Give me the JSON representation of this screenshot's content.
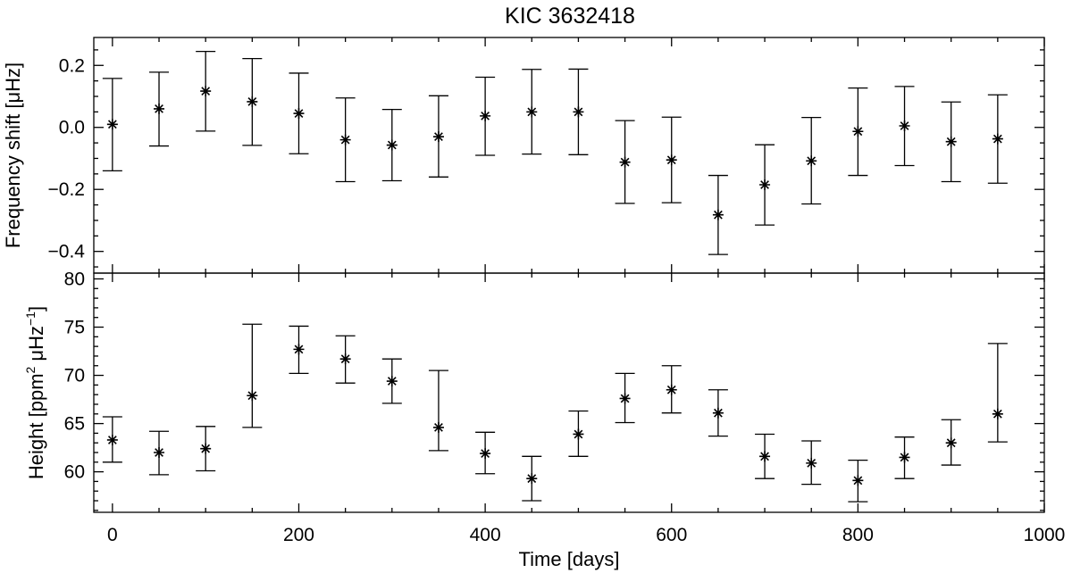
{
  "chart_data": {
    "type": "scatter",
    "title": "KIC 3632418",
    "xlabel": "Time [days]",
    "xlim": [
      -20,
      1000
    ],
    "xticks": [
      0,
      200,
      400,
      600,
      800,
      1000
    ],
    "panels": [
      {
        "ylabel": "Frequency shift [μHz]",
        "ylim": [
          -0.47,
          0.29
        ],
        "yticks": [
          -0.4,
          -0.2,
          0.0,
          0.2
        ],
        "ytick_labels": [
          "−0.4",
          "−0.2",
          "0.0",
          "0.2"
        ],
        "x": [
          0,
          50,
          100,
          150,
          200,
          250,
          300,
          350,
          400,
          450,
          500,
          550,
          600,
          650,
          700,
          750,
          800,
          850,
          900,
          950
        ],
        "y": [
          0.01,
          0.06,
          0.117,
          0.083,
          0.045,
          -0.04,
          -0.057,
          -0.03,
          0.037,
          0.05,
          0.05,
          -0.112,
          -0.105,
          -0.282,
          -0.185,
          -0.108,
          -0.013,
          0.005,
          -0.046,
          -0.037
        ],
        "err_low": [
          -0.14,
          -0.06,
          -0.012,
          -0.058,
          -0.085,
          -0.175,
          -0.172,
          -0.16,
          -0.09,
          -0.086,
          -0.088,
          -0.245,
          -0.243,
          -0.41,
          -0.315,
          -0.247,
          -0.155,
          -0.123,
          -0.175,
          -0.18
        ],
        "err_high": [
          0.158,
          0.178,
          0.245,
          0.222,
          0.175,
          0.095,
          0.058,
          0.102,
          0.162,
          0.187,
          0.188,
          0.022,
          0.033,
          -0.155,
          -0.056,
          0.032,
          0.127,
          0.132,
          0.082,
          0.105
        ]
      },
      {
        "ylabel_parts": [
          "Height [ppm",
          "2",
          " μHz",
          "−1",
          "]"
        ],
        "ylim": [
          55.8,
          80.6
        ],
        "yticks": [
          60,
          65,
          70,
          75,
          80
        ],
        "ytick_labels": [
          "60",
          "65",
          "70",
          "75",
          "80"
        ],
        "x": [
          0,
          50,
          100,
          150,
          200,
          250,
          300,
          350,
          400,
          450,
          500,
          550,
          600,
          650,
          700,
          750,
          800,
          850,
          900,
          950
        ],
        "y": [
          63.3,
          62.0,
          62.4,
          67.9,
          72.7,
          71.7,
          69.4,
          64.6,
          61.9,
          59.3,
          63.9,
          67.6,
          68.5,
          66.1,
          61.6,
          60.9,
          59.1,
          61.5,
          63.0,
          66.0
        ],
        "err_low": [
          61.0,
          59.7,
          60.1,
          64.6,
          70.2,
          69.2,
          67.1,
          62.2,
          59.8,
          57.0,
          61.6,
          65.1,
          66.1,
          63.7,
          59.3,
          58.7,
          56.9,
          59.3,
          60.7,
          63.1
        ],
        "err_high": [
          65.7,
          64.2,
          64.7,
          75.3,
          75.1,
          74.1,
          71.7,
          70.5,
          64.1,
          61.6,
          66.3,
          70.2,
          71.0,
          68.5,
          63.9,
          63.2,
          61.2,
          63.6,
          65.4,
          73.3
        ]
      }
    ]
  }
}
